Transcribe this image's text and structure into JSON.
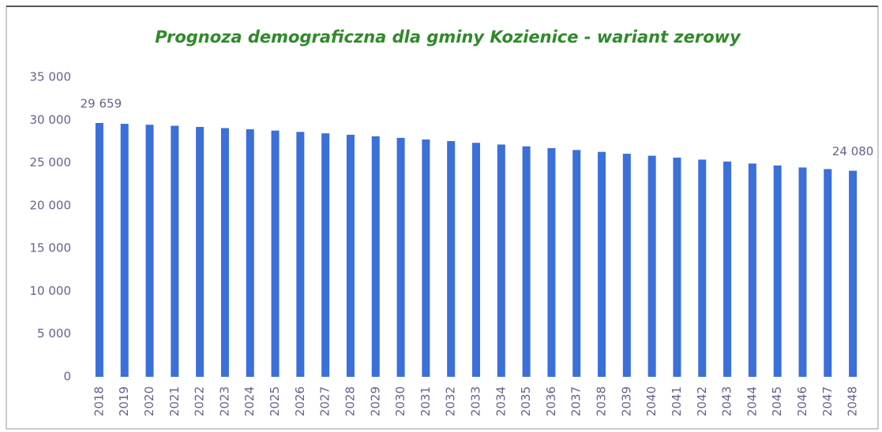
{
  "chart_data": {
    "type": "bar",
    "title": "Prognoza demograficzna dla gminy Kozienice  - wariant zerowy",
    "categories": [
      "2018",
      "2019",
      "2020",
      "2021",
      "2022",
      "2023",
      "2024",
      "2025",
      "2026",
      "2027",
      "2028",
      "2029",
      "2030",
      "2031",
      "2032",
      "2033",
      "2034",
      "2035",
      "2036",
      "2037",
      "2038",
      "2039",
      "2040",
      "2041",
      "2042",
      "2043",
      "2044",
      "2045",
      "2046",
      "2047",
      "2048"
    ],
    "values": [
      29659,
      29560,
      29450,
      29330,
      29200,
      29060,
      28920,
      28770,
      28610,
      28450,
      28280,
      28100,
      27920,
      27730,
      27540,
      27340,
      27140,
      26930,
      26720,
      26500,
      26280,
      26060,
      25830,
      25610,
      25380,
      25150,
      24920,
      24690,
      24460,
      24270,
      24080
    ],
    "value_labels": [
      "29 659",
      null,
      null,
      null,
      null,
      null,
      null,
      null,
      null,
      null,
      null,
      null,
      null,
      null,
      null,
      null,
      null,
      null,
      null,
      null,
      null,
      null,
      null,
      null,
      null,
      null,
      null,
      null,
      null,
      null,
      "24 080"
    ],
    "color": "#3b6fd9",
    "ylim": [
      0,
      35000
    ],
    "yticks": [
      0,
      {
        "value": 5000,
        "label": "5 000"
      },
      {
        "value": 10000,
        "label": "10 000"
      },
      {
        "value": 15000,
        "label": "15 000"
      },
      {
        "value": 20000,
        "label": "20 000"
      },
      {
        "value": 25000,
        "label": "25 000"
      },
      {
        "value": 30000,
        "label": "30 000"
      },
      {
        "value": 35000,
        "label": "35 000"
      }
    ],
    "grid": false
  }
}
